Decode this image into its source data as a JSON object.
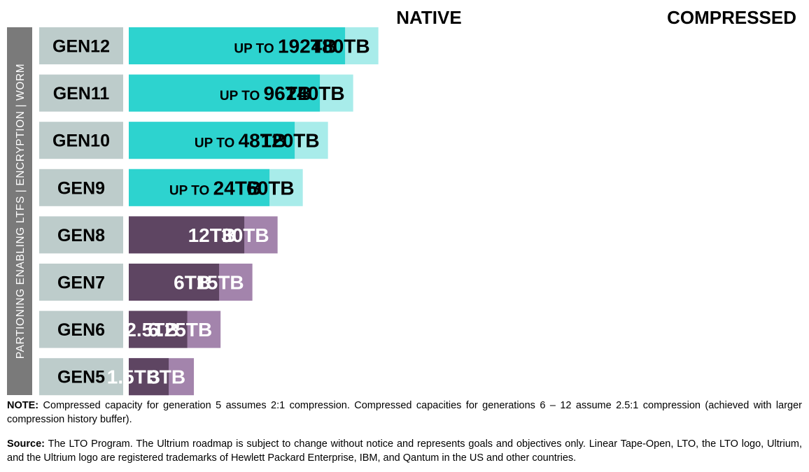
{
  "chart_data": {
    "type": "bar",
    "orientation": "horizontal",
    "stacked_overlay": true,
    "headers": {
      "native": "NATIVE",
      "compressed": "COMPRESSED"
    },
    "side_label": "PARTIONING ENABLING LTFS | ENCRYPTION | WORM",
    "unit": "TB",
    "categories": [
      "GEN12",
      "GEN11",
      "GEN10",
      "GEN9",
      "GEN8",
      "GEN7",
      "GEN6",
      "GEN5"
    ],
    "series": [
      {
        "name": "NATIVE",
        "values": [
          192,
          96,
          48,
          24,
          12,
          6,
          2.5,
          1.5
        ]
      },
      {
        "name": "COMPRESSED",
        "values": [
          480,
          240,
          120,
          60,
          30,
          15,
          6.25,
          3
        ]
      }
    ],
    "native_labels": [
      "192TB",
      "96TB",
      "48TB",
      "24TB",
      "12TB",
      "6TB",
      "2.5TB",
      "1.5TB"
    ],
    "native_prefixes": [
      "UP TO",
      "UP TO",
      "UP TO",
      "UP TO",
      "",
      "",
      "",
      ""
    ],
    "compressed_labels": [
      "480TB",
      "240TB",
      "120TB",
      "60TB",
      "30TB",
      "15TB",
      "6.25TB",
      "3TB"
    ],
    "colors": {
      "future_native": "#2dd3cf",
      "future_compressed": "#a8ecea",
      "past_native": "#5e4562",
      "past_compressed": "#a384ac",
      "category_box": "#bdcccb",
      "side_bar": "#7a7a7a"
    }
  },
  "notes": {
    "note_label": "NOTE:",
    "note_text": " Compressed capacity for generation 5 assumes 2:1 compression. Compressed capacities for generations 6 – 12 assume 2.5:1 compression (achieved with larger compression history buffer).",
    "source_label": "Source:",
    "source_text": " The LTO Program. The Ultrium roadmap is subject to change without notice and represents goals and objectives only. Linear Tape-Open, LTO, the LTO logo, Ultrium, and the Ultrium logo are registered trademarks of Hewlett Packard Enterprise, IBM, and Qantum in the US and other countries."
  }
}
